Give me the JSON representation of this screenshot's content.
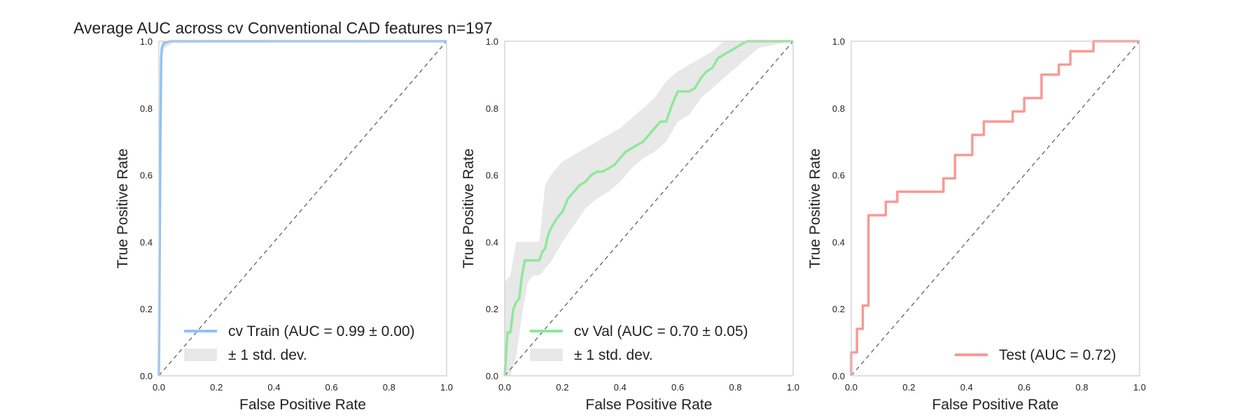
{
  "figure_title": "Average AUC across cv Conventional CAD features n=197",
  "colors": {
    "train": "#8fc2f7",
    "val": "#8ee99a",
    "test": "#f79a96",
    "band": "#e8e8e8",
    "diagonal": "#555555",
    "frame": "#cccccc"
  },
  "chart_data": [
    {
      "type": "line",
      "xlabel": "False Positive Rate",
      "ylabel": "True Positive Rate",
      "xlim": [
        0,
        1
      ],
      "ylim": [
        0,
        1
      ],
      "x_ticks": [
        "0.0",
        "0.2",
        "0.4",
        "0.6",
        "0.8",
        "1.0"
      ],
      "y_ticks": [
        "0.0",
        "0.2",
        "0.4",
        "0.6",
        "0.8",
        "1.0"
      ],
      "grid": false,
      "diagonal_reference": true,
      "legend_position": "lower right",
      "series": [
        {
          "name": "cv Train (AUC = 0.99 ± 0.00)",
          "color_key": "train",
          "x": [
            0,
            0.005,
            0.008,
            0.01,
            0.015,
            0.02,
            0.04,
            0.06,
            1
          ],
          "y": [
            0,
            0.7,
            0.95,
            0.98,
            0.99,
            0.995,
            1,
            1,
            1
          ]
        }
      ],
      "band": {
        "name": "± 1 std. dev.",
        "x": [
          0,
          0.01,
          0.02,
          0.05,
          1
        ],
        "lower": [
          0,
          0.95,
          0.98,
          0.995,
          1
        ],
        "upper": [
          0.02,
          1,
          1,
          1,
          1
        ]
      }
    },
    {
      "type": "line",
      "xlabel": "False Positive Rate",
      "ylabel": "True Positive Rate",
      "xlim": [
        0,
        1
      ],
      "ylim": [
        0,
        1
      ],
      "x_ticks": [
        "0.0",
        "0.2",
        "0.4",
        "0.6",
        "0.8",
        "1.0"
      ],
      "y_ticks": [
        "0.0",
        "0.2",
        "0.4",
        "0.6",
        "0.8",
        "1.0"
      ],
      "grid": false,
      "diagonal_reference": true,
      "legend_position": "lower right",
      "series": [
        {
          "name": "cv Val (AUC = 0.70 ± 0.05)",
          "color_key": "val",
          "x": [
            0,
            0.01,
            0.02,
            0.03,
            0.04,
            0.05,
            0.06,
            0.07,
            0.1,
            0.12,
            0.13,
            0.14,
            0.15,
            0.16,
            0.18,
            0.2,
            0.22,
            0.24,
            0.26,
            0.28,
            0.3,
            0.32,
            0.34,
            0.36,
            0.38,
            0.4,
            0.42,
            0.44,
            0.46,
            0.48,
            0.5,
            0.52,
            0.54,
            0.56,
            0.58,
            0.6,
            0.62,
            0.64,
            0.66,
            0.68,
            0.7,
            0.72,
            0.74,
            0.76,
            0.78,
            0.8,
            0.82,
            0.84,
            1.0
          ],
          "y": [
            0,
            0.13,
            0.13,
            0.2,
            0.22,
            0.23,
            0.3,
            0.345,
            0.345,
            0.345,
            0.37,
            0.38,
            0.42,
            0.44,
            0.47,
            0.49,
            0.53,
            0.55,
            0.57,
            0.58,
            0.6,
            0.61,
            0.61,
            0.62,
            0.63,
            0.65,
            0.67,
            0.68,
            0.69,
            0.7,
            0.72,
            0.74,
            0.76,
            0.76,
            0.81,
            0.85,
            0.85,
            0.85,
            0.86,
            0.89,
            0.91,
            0.92,
            0.95,
            0.96,
            0.97,
            0.98,
            0.99,
            1.0,
            1.0
          ]
        }
      ],
      "band": {
        "name": "± 1 std. dev.",
        "x": [
          0,
          0.02,
          0.04,
          0.06,
          0.08,
          0.1,
          0.12,
          0.14,
          0.16,
          0.2,
          0.24,
          0.28,
          0.32,
          0.36,
          0.4,
          0.44,
          0.48,
          0.52,
          0.56,
          0.6,
          0.64,
          0.68,
          0.72,
          0.76,
          0.8,
          0.84,
          0.88,
          1.0
        ],
        "lower": [
          0,
          0.0,
          0.06,
          0.18,
          0.28,
          0.3,
          0.3,
          0.32,
          0.34,
          0.4,
          0.45,
          0.5,
          0.53,
          0.55,
          0.58,
          0.62,
          0.65,
          0.67,
          0.7,
          0.76,
          0.78,
          0.83,
          0.86,
          0.89,
          0.92,
          0.95,
          0.98,
          1.0
        ],
        "upper": [
          0.28,
          0.3,
          0.4,
          0.4,
          0.4,
          0.4,
          0.4,
          0.57,
          0.6,
          0.64,
          0.66,
          0.68,
          0.7,
          0.72,
          0.74,
          0.77,
          0.8,
          0.83,
          0.88,
          0.91,
          0.93,
          0.95,
          0.97,
          1.0,
          1.0,
          1.0,
          1.0,
          1.0
        ]
      }
    },
    {
      "type": "line",
      "xlabel": "False Positive Rate",
      "ylabel": "True Positive Rate",
      "xlim": [
        0,
        1
      ],
      "ylim": [
        0,
        1
      ],
      "x_ticks": [
        "0.0",
        "0.2",
        "0.4",
        "0.6",
        "0.8",
        "1.0"
      ],
      "y_ticks": [
        "0.0",
        "0.2",
        "0.4",
        "0.6",
        "0.8",
        "1.0"
      ],
      "grid": false,
      "diagonal_reference": true,
      "legend_position": "lower right",
      "series": [
        {
          "name": "Test (AUC = 0.72)",
          "color_key": "test",
          "x": [
            0,
            0,
            0.02,
            0.02,
            0.04,
            0.04,
            0.06,
            0.06,
            0.12,
            0.12,
            0.16,
            0.16,
            0.32,
            0.32,
            0.36,
            0.36,
            0.42,
            0.42,
            0.46,
            0.46,
            0.56,
            0.56,
            0.6,
            0.6,
            0.66,
            0.66,
            0.72,
            0.72,
            0.76,
            0.76,
            0.84,
            0.84,
            1.0
          ],
          "y": [
            0,
            0.07,
            0.07,
            0.14,
            0.14,
            0.21,
            0.21,
            0.48,
            0.48,
            0.52,
            0.52,
            0.55,
            0.55,
            0.59,
            0.59,
            0.66,
            0.66,
            0.72,
            0.72,
            0.76,
            0.76,
            0.79,
            0.79,
            0.83,
            0.83,
            0.9,
            0.9,
            0.93,
            0.93,
            0.97,
            0.97,
            1.0,
            1.0
          ]
        }
      ]
    }
  ]
}
